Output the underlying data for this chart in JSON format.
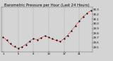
{
  "title": "Barometric Pressure per Hour (Last 24 Hours)",
  "hours": [
    0,
    1,
    2,
    3,
    4,
    5,
    6,
    7,
    8,
    9,
    10,
    11,
    12,
    13,
    14,
    15,
    16,
    17,
    18,
    19,
    20,
    21,
    22,
    23
  ],
  "pressure": [
    29.72,
    29.65,
    29.58,
    29.52,
    29.48,
    29.5,
    29.55,
    29.62,
    29.68,
    29.65,
    29.7,
    29.75,
    29.72,
    29.68,
    29.65,
    29.62,
    29.68,
    29.75,
    29.85,
    29.95,
    30.05,
    30.15,
    30.22,
    30.28
  ],
  "trend": [
    29.72,
    29.64,
    29.56,
    29.5,
    29.48,
    29.51,
    29.56,
    29.63,
    29.68,
    29.66,
    29.7,
    29.74,
    29.71,
    29.67,
    29.64,
    29.62,
    29.68,
    29.76,
    29.86,
    29.96,
    30.06,
    30.15,
    30.22,
    30.28
  ],
  "dot_color": "#000000",
  "line_color": "#dd0000",
  "bg_color": "#d4d4d4",
  "plot_bg_color": "#d4d4d4",
  "grid_color": "#888888",
  "ylim_min": 29.4,
  "ylim_max": 30.35,
  "yticks": [
    29.5,
    29.6,
    29.7,
    29.8,
    29.9,
    30.0,
    30.1,
    30.2,
    30.3
  ],
  "title_fontsize": 3.8,
  "tick_fontsize": 2.8,
  "x_tick_every": 4
}
